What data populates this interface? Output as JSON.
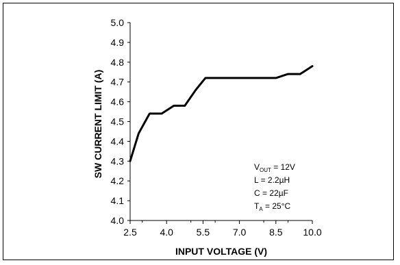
{
  "chart_data": {
    "type": "line",
    "title": "",
    "xlabel": "INPUT VOLTAGE (V)",
    "ylabel": "SW CURRENT LIMIT (A)",
    "xlim": [
      2.5,
      10.0
    ],
    "ylim": [
      4.0,
      5.0
    ],
    "x_ticks": [
      "2.5",
      "4.0",
      "5.5",
      "7.0",
      "8.5",
      "10.0"
    ],
    "x_minor_ticks": [
      "3",
      "5",
      "6",
      "8",
      "9"
    ],
    "y_ticks": [
      "4.0",
      "4.1",
      "4.2",
      "4.3",
      "4.4",
      "4.5",
      "4.6",
      "4.7",
      "4.8",
      "4.9",
      "5.0"
    ],
    "grid": false,
    "line_color": "#000000",
    "series": [
      {
        "x": [
          2.5,
          2.85,
          3.3,
          3.8,
          4.3,
          4.75,
          5.2,
          5.6,
          6.1,
          6.6,
          7.1,
          7.6,
          8.1,
          8.5,
          9.0,
          9.5,
          10.0
        ],
        "values": [
          4.3,
          4.44,
          4.54,
          4.54,
          4.58,
          4.58,
          4.66,
          4.72,
          4.72,
          4.72,
          4.72,
          4.72,
          4.72,
          4.72,
          4.74,
          4.74,
          4.78
        ]
      }
    ],
    "annotations": [
      {
        "main": "V",
        "sub": "OUT",
        "rest": " = 12V"
      },
      {
        "main": "L = 2.2µH",
        "sub": "",
        "rest": ""
      },
      {
        "main": "C = 22µF",
        "sub": "",
        "rest": ""
      },
      {
        "main": "T",
        "sub": "A",
        "rest": " = 25°C"
      }
    ]
  }
}
